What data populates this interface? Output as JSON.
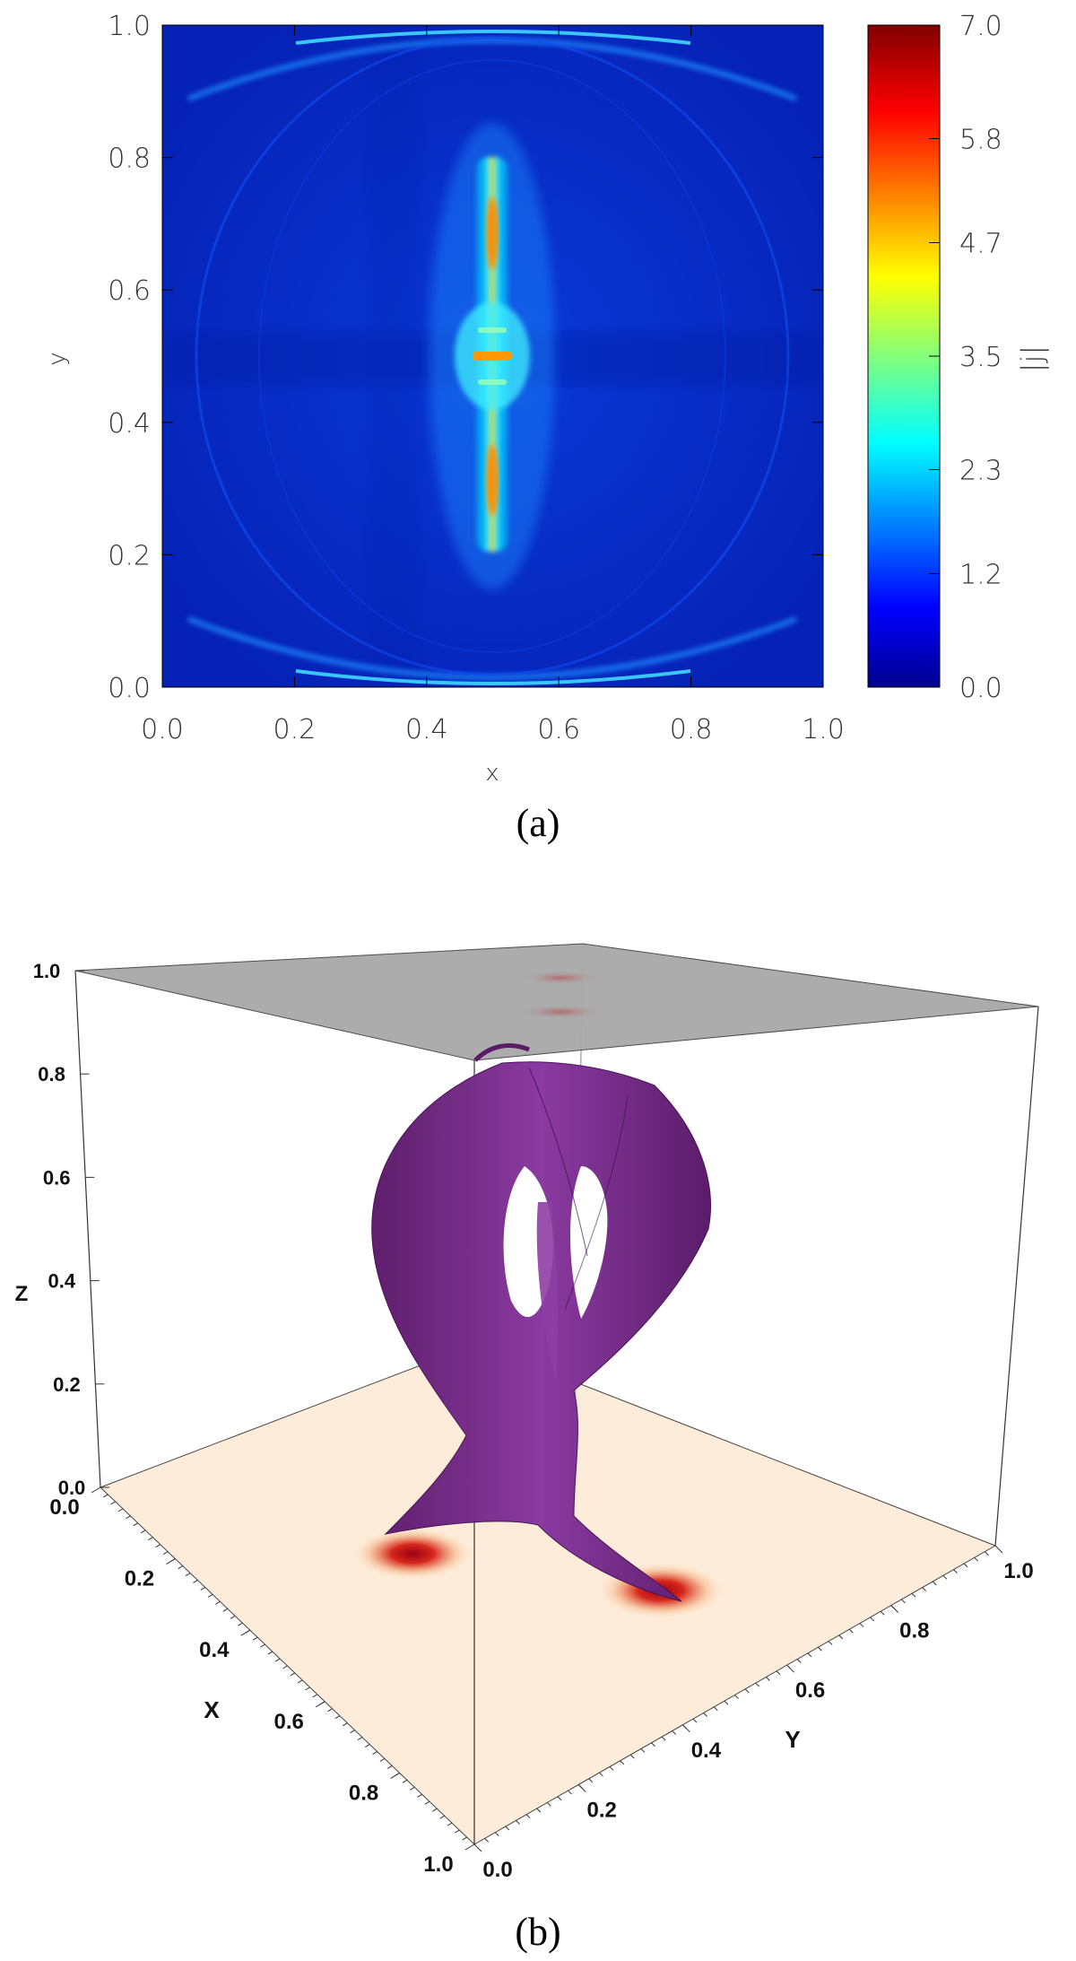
{
  "panels": {
    "a": {
      "caption": "(a)"
    },
    "b": {
      "caption": "(b)"
    }
  },
  "chart_data": [
    {
      "type": "heatmap",
      "panel": "a",
      "xlabel": "x",
      "ylabel": "y",
      "xlim": [
        0.0,
        1.0
      ],
      "ylim": [
        0.0,
        1.0
      ],
      "xticks": [
        "0.0",
        "0.2",
        "0.4",
        "0.6",
        "0.8",
        "1.0"
      ],
      "yticks": [
        "0.0",
        "0.2",
        "0.4",
        "0.6",
        "0.8",
        "1.0"
      ],
      "colorbar": {
        "label": "|j|",
        "range": [
          0.0,
          7.0
        ],
        "ticks": [
          "0.0",
          "1.2",
          "2.3",
          "3.5",
          "4.7",
          "5.8",
          "7.0"
        ]
      },
      "colors": {
        "low": "#0000a8",
        "high": "#8b0000"
      }
    },
    {
      "type": "3d-surface",
      "panel": "b",
      "xlabel": "X",
      "ylabel": "Y",
      "zlabel": "Z",
      "xticks": [
        "0.0",
        "0.2",
        "0.4",
        "0.6",
        "0.8",
        "1.0"
      ],
      "yticks": [
        "0.0",
        "0.2",
        "0.4",
        "0.6",
        "0.8",
        "1.0"
      ],
      "zticks": [
        "0.0",
        "0.2",
        "0.4",
        "0.6",
        "0.8",
        "1.0"
      ],
      "colors": {
        "surface": "#7a2d87",
        "top_plane": "#a8a8a8",
        "base_plane": "#fdecd9",
        "spot": "#b3001b"
      }
    }
  ]
}
